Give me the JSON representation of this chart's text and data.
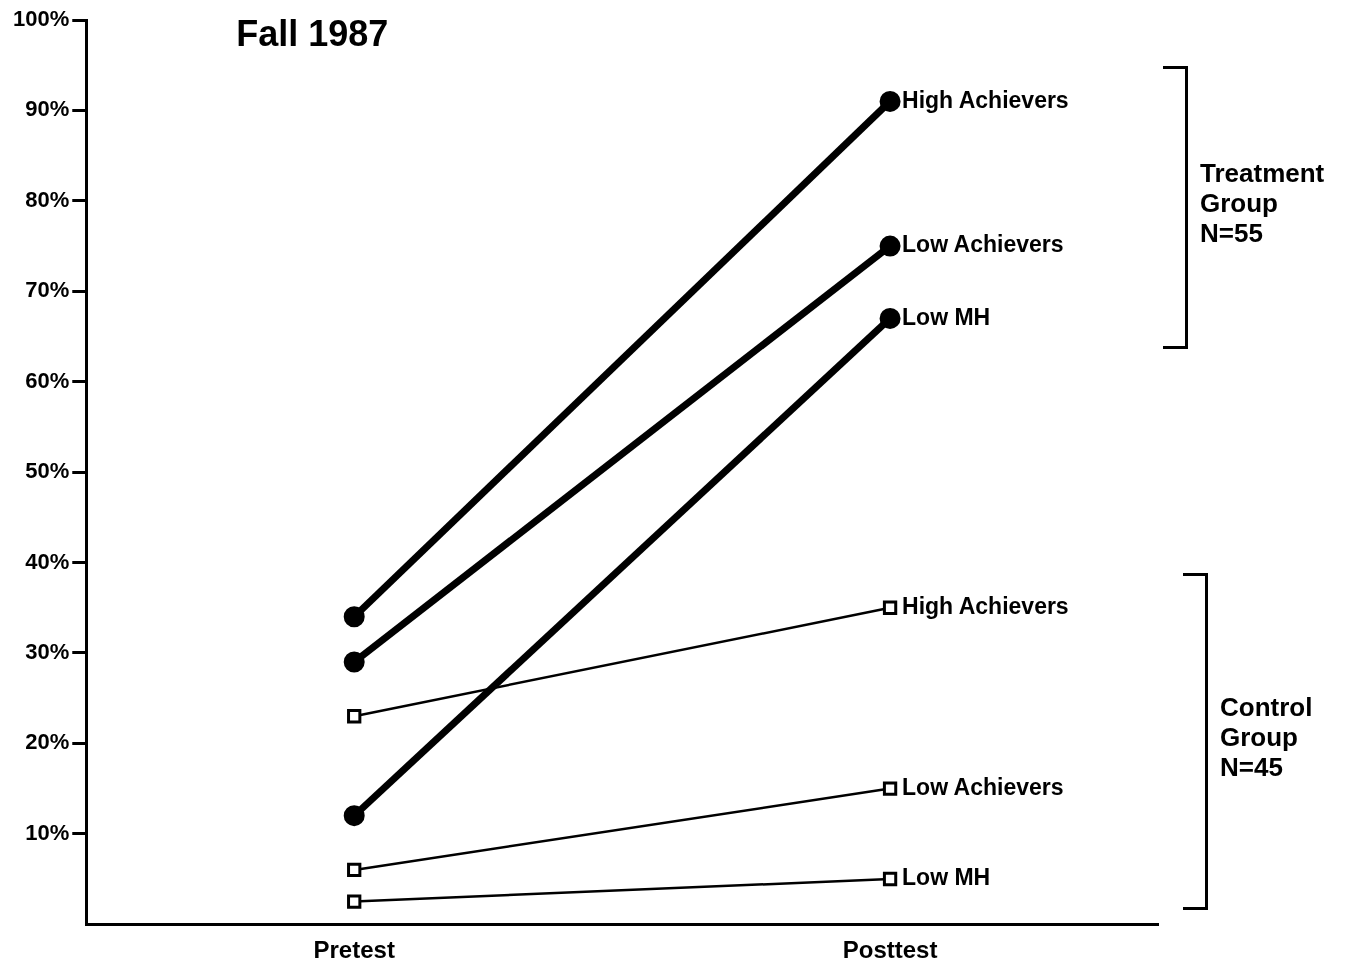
{
  "chart_data": {
    "type": "line",
    "title": "Fall 1987",
    "categories": [
      "Pretest",
      "Posttest"
    ],
    "series": [
      {
        "name": "High Achievers",
        "color": "#000000",
        "marker": "circle",
        "values": [
          34,
          91
        ]
      },
      {
        "name": "Low Achievers",
        "color": "#000000",
        "marker": "circle",
        "values": [
          29,
          75
        ]
      },
      {
        "name": "Low MH",
        "color": "#000000",
        "marker": "circle",
        "values": [
          12,
          67
        ]
      },
      {
        "name": "High Achievers",
        "color": "#000000",
        "marker": "square",
        "values": [
          23,
          35
        ]
      },
      {
        "name": "Low Achievers",
        "color": "#000000",
        "marker": "square",
        "values": [
          6,
          15
        ]
      },
      {
        "name": "Low MH",
        "color": "#000000",
        "marker": "square",
        "values": [
          2.5,
          5
        ]
      }
    ],
    "ylim": [
      0,
      100
    ],
    "yticks": [
      {
        "value": 10,
        "label": "10%"
      },
      {
        "value": 20,
        "label": "20%"
      },
      {
        "value": 30,
        "label": "30%"
      },
      {
        "value": 40,
        "label": "40%"
      },
      {
        "value": 50,
        "label": "50%"
      },
      {
        "value": 60,
        "label": "60%"
      },
      {
        "value": 70,
        "label": "70%"
      },
      {
        "value": 80,
        "label": "80%"
      },
      {
        "value": 90,
        "label": "90%"
      },
      {
        "value": 100,
        "label": "100%"
      }
    ],
    "annotations": [
      "Treatment\nGroup\nN=55",
      "Control\nGroup\nN=45"
    ],
    "grid": false,
    "legend": false
  }
}
